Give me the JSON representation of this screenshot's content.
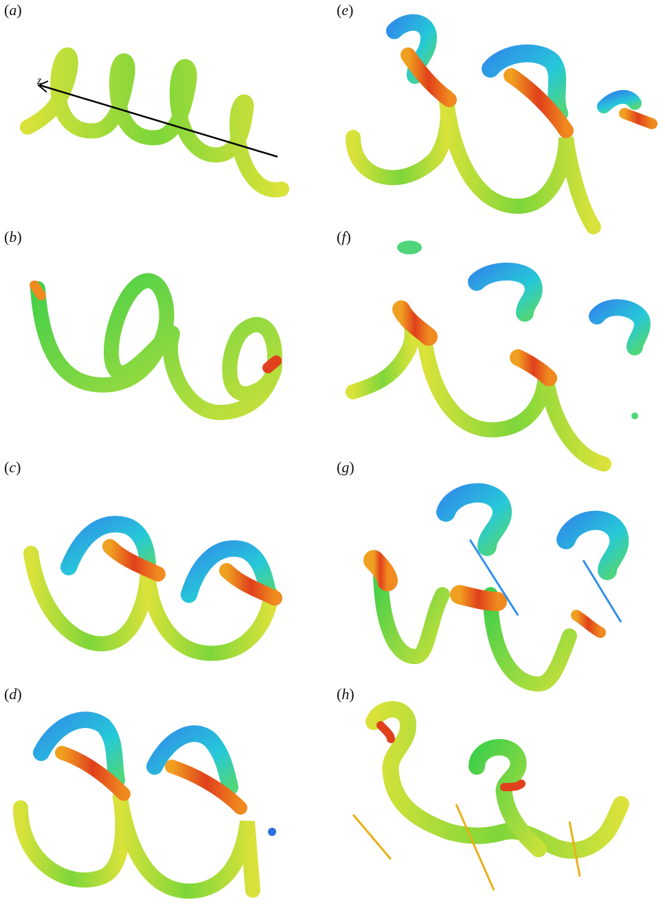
{
  "figure": {
    "panels": [
      {
        "id": "a",
        "label": "a",
        "axis_label": "z"
      },
      {
        "id": "b",
        "label": "b"
      },
      {
        "id": "c",
        "label": "c"
      },
      {
        "id": "d",
        "label": "d"
      },
      {
        "id": "e",
        "label": "e"
      },
      {
        "id": "f",
        "label": "f"
      },
      {
        "id": "g",
        "label": "g"
      },
      {
        "id": "h",
        "label": "h"
      }
    ],
    "colors": {
      "green": "#3fcf4a",
      "yellow": "#d9e23a",
      "orange": "#f08a1e",
      "red": "#e0401c",
      "cyan": "#26c8d8",
      "blue": "#2f6fe0"
    }
  }
}
